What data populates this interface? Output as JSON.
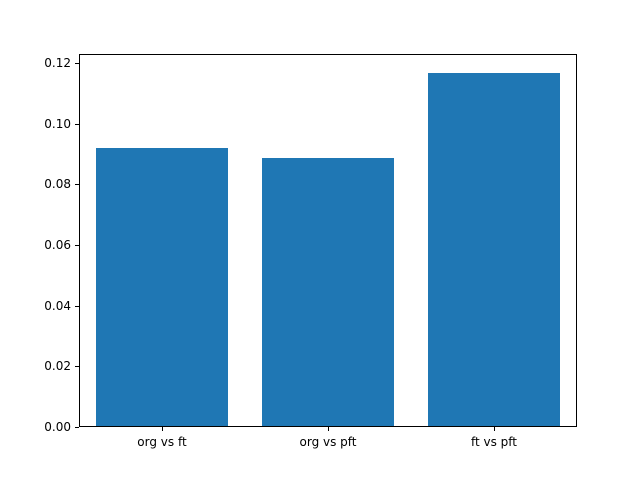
{
  "chart_data": {
    "type": "bar",
    "categories": [
      "org vs ft",
      "org vs pft",
      "ft vs pft"
    ],
    "values": [
      0.0918,
      0.0883,
      0.1163
    ],
    "title": "",
    "xlabel": "",
    "ylabel": "",
    "ylim": [
      0,
      0.123
    ],
    "ytick_values": [
      0.0,
      0.02,
      0.04,
      0.06,
      0.08,
      0.1,
      0.12
    ],
    "ytick_labels": [
      "0.00",
      "0.02",
      "0.04",
      "0.06",
      "0.08",
      "0.10",
      "0.12"
    ],
    "grid": false,
    "legend": null,
    "bar_width_fraction": 0.8,
    "colors": {
      "bar": "#1f77b4",
      "axis": "#000000",
      "text": "#000000",
      "background": "#ffffff"
    }
  }
}
